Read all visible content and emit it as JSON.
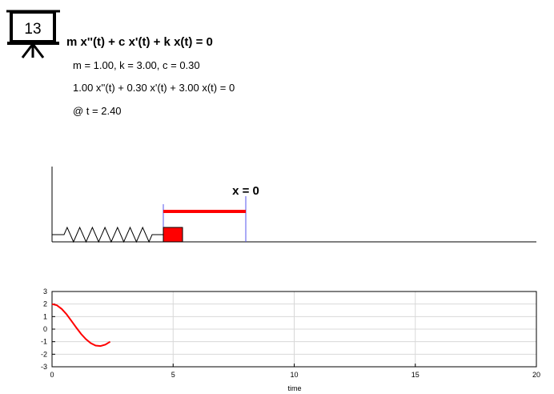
{
  "badge": {
    "number": "13"
  },
  "header": {
    "equation": "m x''(t) + c x'(t) + k x(t) = 0",
    "params": "m = 1.00, k = 3.00, c = 0.30",
    "substituted": "1.00 x''(t) + 0.30 x'(t) + 3.00 x(t) = 0",
    "time_readout": "@ t = 2.40"
  },
  "sim": {
    "equilibrium_label": "x = 0",
    "displacement": -1.0,
    "colors": {
      "mass": "#ff0000",
      "bar": "#ff0000",
      "guides": "#5555ee",
      "spring": "#000000"
    }
  },
  "chart_data": {
    "type": "line",
    "xlabel": "time",
    "ylabel": "",
    "title": "",
    "xlim": [
      0,
      20
    ],
    "ylim": [
      -3,
      3
    ],
    "xticks": [
      "0",
      "5",
      "10",
      "15",
      "20"
    ],
    "yticks": [
      "-3",
      "-2",
      "-1",
      "0",
      "1",
      "2",
      "3"
    ],
    "grid": true,
    "series": [
      {
        "color": "#ff0000",
        "x": [
          0,
          0.2,
          0.4,
          0.6,
          0.8,
          1.0,
          1.2,
          1.4,
          1.6,
          1.8,
          2.0,
          2.2,
          2.4
        ],
        "y": [
          2.0,
          1.9,
          1.61,
          1.18,
          0.66,
          0.12,
          -0.38,
          -0.8,
          -1.12,
          -1.31,
          -1.35,
          -1.23,
          -1.0
        ]
      }
    ]
  }
}
